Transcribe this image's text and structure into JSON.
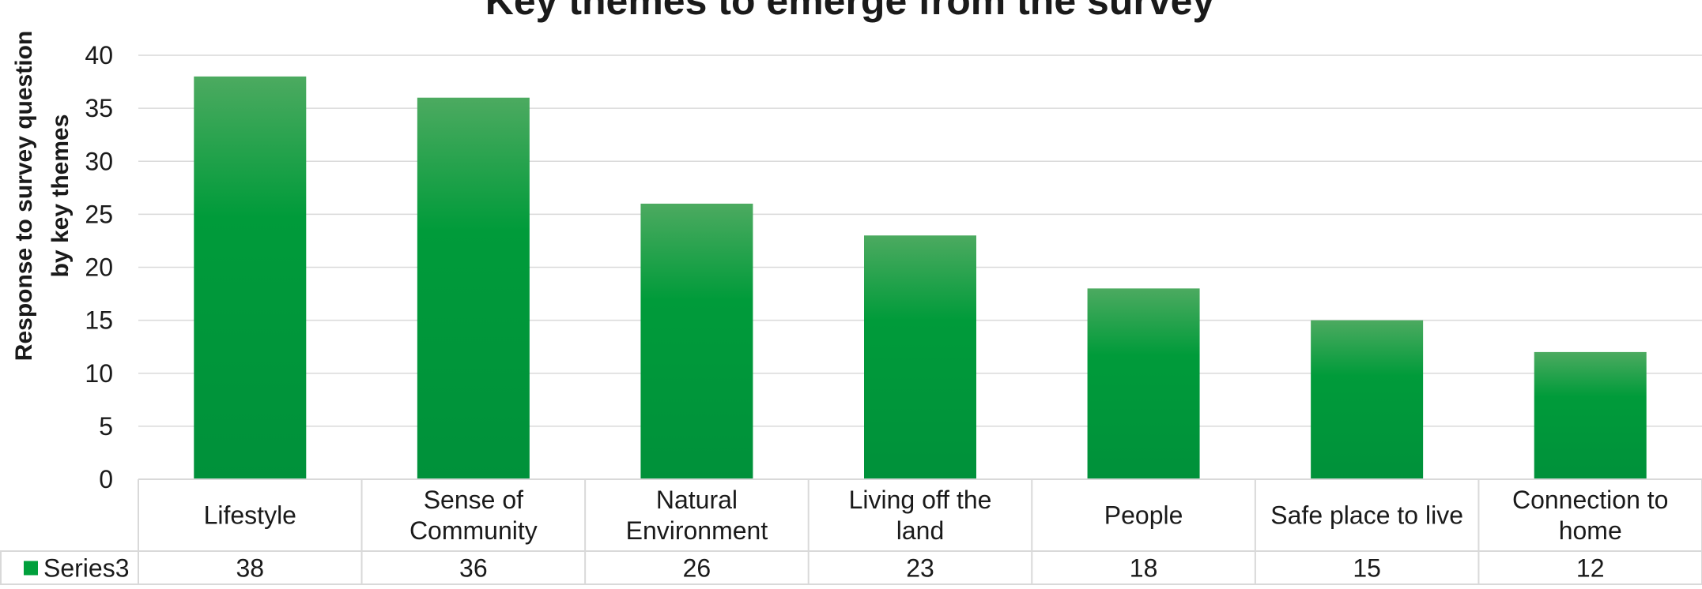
{
  "chart_data": {
    "type": "bar",
    "title": "Key themes to emerge from the survey",
    "ylabel_lines": [
      "Response to survey question",
      "by key themes"
    ],
    "xlabel": "",
    "categories": [
      [
        "Lifestyle"
      ],
      [
        "Sense of",
        "Community"
      ],
      [
        "Natural",
        "Environment"
      ],
      [
        "Living off the",
        "land"
      ],
      [
        "People"
      ],
      [
        "Safe place to live"
      ],
      [
        "Connection to",
        "home"
      ]
    ],
    "series": [
      {
        "name": "Series3",
        "values": [
          38,
          36,
          26,
          23,
          18,
          15,
          12
        ]
      }
    ],
    "ylim": [
      0,
      40
    ],
    "yticks": [
      0,
      5,
      10,
      15,
      20,
      25,
      30,
      35,
      40
    ],
    "grid": true,
    "legend": "data-table",
    "data_table": true,
    "colors": {
      "bar_top": "#4caa60",
      "bar_mid": "#009b3a",
      "bar_bottom": "#00913a",
      "legend_key": "#00a03c",
      "grid": "#d9d9d9",
      "table_border": "#d9d9d9",
      "text": "#1a1a1a"
    }
  }
}
